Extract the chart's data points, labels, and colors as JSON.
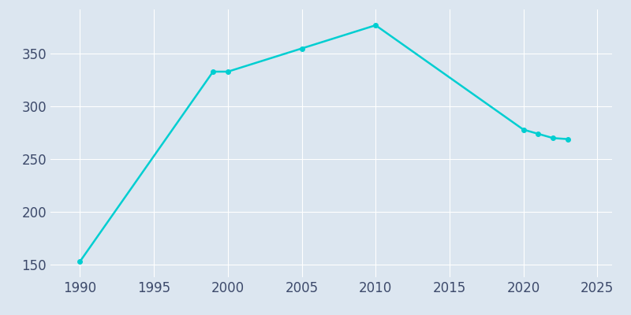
{
  "years": [
    1990,
    1999,
    2000,
    2005,
    2010,
    2020,
    2021,
    2022,
    2023
  ],
  "population": [
    153,
    333,
    333,
    355,
    377,
    278,
    274,
    270,
    269
  ],
  "line_color": "#00CED1",
  "marker_color": "#00CED1",
  "background_color": "#dce6f0",
  "grid_color": "#ffffff",
  "tick_label_color": "#3d4a6b",
  "xlim": [
    1988,
    2026
  ],
  "ylim": [
    138,
    392
  ],
  "xticks": [
    1990,
    1995,
    2000,
    2005,
    2010,
    2015,
    2020,
    2025
  ],
  "yticks": [
    150,
    200,
    250,
    300,
    350
  ],
  "linewidth": 1.8,
  "markersize": 4,
  "tick_labelsize": 12
}
